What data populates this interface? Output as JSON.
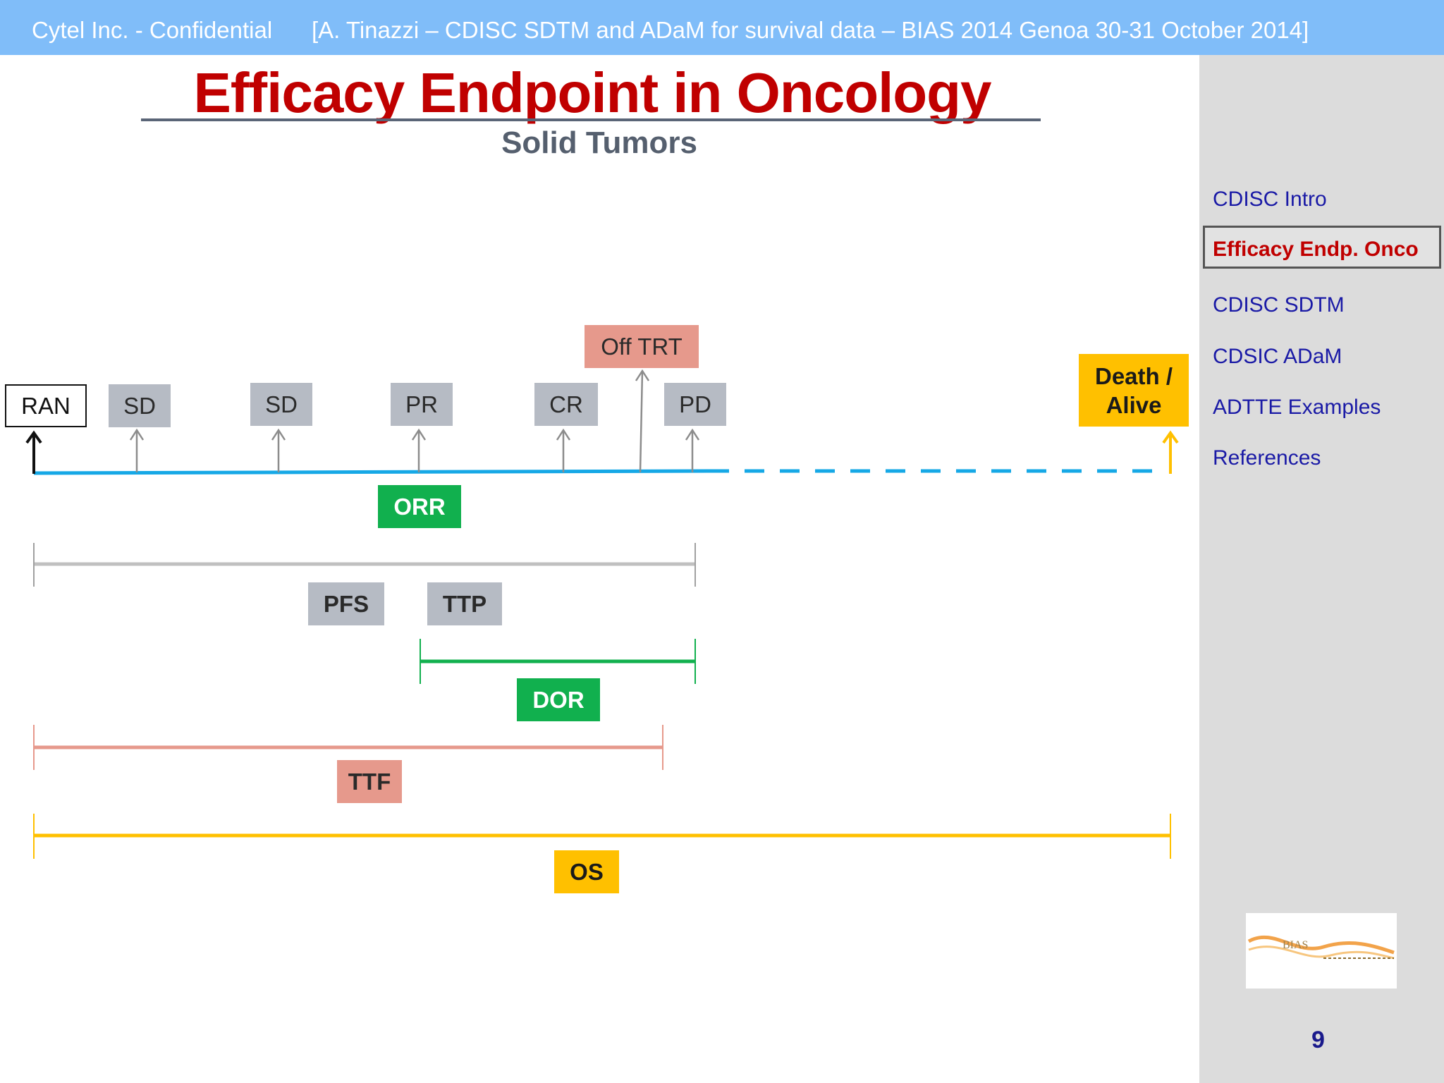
{
  "header": {
    "company": "Cytel Inc. - Confidential",
    "citation": "[A. Tinazzi – CDISC SDTM and ADaM for survival data – BIAS 2014 Genoa 30-31 October 2014]"
  },
  "slide": {
    "title": "Efficacy Endpoint in Oncology",
    "subtitle": "Solid Tumors",
    "page_number": "9"
  },
  "sidebar": {
    "items": [
      {
        "label": "CDISC Intro"
      },
      {
        "label": "Efficacy Endp. Onco"
      },
      {
        "label": "CDISC SDTM"
      },
      {
        "label": "CDSIC ADaM"
      },
      {
        "label": "ADTTE Examples"
      },
      {
        "label": "References"
      }
    ],
    "active_index": 1
  },
  "timeline": {
    "start": "RAN",
    "assessments": [
      "SD",
      "SD",
      "PR",
      "CR",
      "PD"
    ],
    "off_treatment": "Off TRT",
    "end_line1": "Death /",
    "end_line2": "Alive"
  },
  "endpoints": {
    "orr": "ORR",
    "pfs": "PFS",
    "ttp": "TTP",
    "dor": "DOR",
    "ttf": "TTF",
    "os": "OS"
  },
  "colors": {
    "title_red": "#c00000",
    "header_blue": "#80bdf9",
    "timeline_blue": "#16a8e6",
    "green": "#11b04e",
    "salmon": "#e6998c",
    "yellow": "#ffc000",
    "gray": "#b6bbc4"
  },
  "logo_text": "BIAS"
}
